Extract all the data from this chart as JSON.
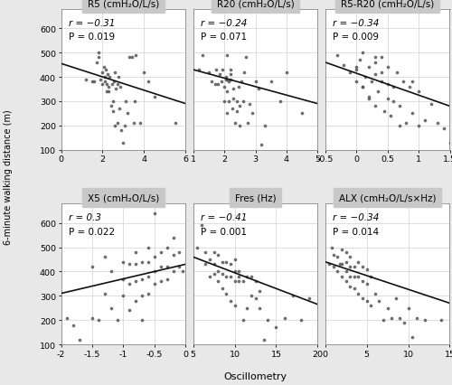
{
  "panels": [
    {
      "title": "R5 (cmH₂O/L/s)",
      "r_str": "r = −0.31",
      "p_str": "P = 0.019",
      "xlim": [
        0,
        6
      ],
      "xticks": [
        0,
        2,
        4,
        6
      ],
      "x": [
        1.2,
        1.5,
        1.6,
        1.7,
        1.8,
        1.8,
        1.9,
        2.0,
        2.0,
        2.05,
        2.1,
        2.1,
        2.15,
        2.2,
        2.2,
        2.25,
        2.3,
        2.3,
        2.35,
        2.4,
        2.45,
        2.5,
        2.5,
        2.55,
        2.6,
        2.6,
        2.65,
        2.7,
        2.7,
        2.75,
        2.8,
        2.85,
        2.9,
        3.0,
        3.05,
        3.1,
        3.2,
        3.3,
        3.4,
        3.5,
        3.55,
        3.6,
        3.8,
        4.0,
        4.2,
        4.5,
        5.5
      ],
      "y": [
        390,
        380,
        380,
        460,
        480,
        500,
        390,
        370,
        420,
        440,
        380,
        400,
        430,
        340,
        370,
        410,
        340,
        360,
        400,
        280,
        370,
        260,
        300,
        380,
        420,
        200,
        350,
        210,
        370,
        400,
        270,
        360,
        180,
        130,
        200,
        300,
        250,
        480,
        480,
        210,
        300,
        490,
        210,
        420,
        380,
        320,
        210
      ],
      "line_x": [
        0,
        6
      ],
      "line_y": [
        455,
        290
      ]
    },
    {
      "title": "R20 (cmH₂O/L/s)",
      "r_str": "r = −0.24",
      "p_str": "P = 0.071",
      "xlim": [
        1,
        5
      ],
      "xticks": [
        1,
        2,
        3,
        4,
        5
      ],
      "x": [
        1.2,
        1.3,
        1.5,
        1.6,
        1.7,
        1.75,
        1.8,
        1.85,
        1.9,
        1.95,
        2.0,
        2.0,
        2.05,
        2.05,
        2.1,
        2.1,
        2.15,
        2.2,
        2.2,
        2.25,
        2.3,
        2.3,
        2.35,
        2.4,
        2.4,
        2.45,
        2.5,
        2.5,
        2.55,
        2.6,
        2.65,
        2.7,
        2.75,
        2.8,
        2.9,
        3.0,
        3.1,
        3.2,
        3.3,
        3.5,
        3.8,
        4.0,
        4.5,
        2.1,
        2.1,
        2.15,
        2.2
      ],
      "y": [
        430,
        490,
        420,
        380,
        370,
        430,
        370,
        410,
        380,
        430,
        300,
        360,
        390,
        400,
        490,
        340,
        380,
        410,
        430,
        270,
        310,
        350,
        210,
        260,
        300,
        360,
        200,
        280,
        380,
        300,
        420,
        480,
        210,
        290,
        250,
        380,
        350,
        120,
        200,
        380,
        300,
        420,
        250,
        390,
        250,
        300,
        390
      ],
      "line_x": [
        1,
        5
      ],
      "line_y": [
        430,
        290
      ]
    },
    {
      "title": "R5-R20 (cmH₂O/L/s)",
      "r_str": "r = −0.34",
      "p_str": "P = 0.009",
      "xlim": [
        -0.5,
        1.5
      ],
      "xticks": [
        -0.5,
        0.0,
        0.5,
        1.0,
        1.5
      ],
      "x": [
        -0.3,
        -0.2,
        -0.1,
        0.0,
        0.0,
        0.05,
        0.1,
        0.1,
        0.15,
        0.2,
        0.2,
        0.25,
        0.3,
        0.3,
        0.3,
        0.35,
        0.4,
        0.4,
        0.4,
        0.45,
        0.5,
        0.5,
        0.5,
        0.55,
        0.6,
        0.6,
        0.65,
        0.7,
        0.7,
        0.75,
        0.8,
        0.85,
        0.9,
        0.9,
        1.0,
        1.0,
        1.1,
        1.2,
        1.3,
        1.4,
        1.5,
        0.3,
        0.0,
        0.1,
        0.2
      ],
      "y": [
        490,
        450,
        420,
        380,
        430,
        470,
        500,
        360,
        400,
        440,
        320,
        380,
        410,
        460,
        280,
        340,
        380,
        420,
        480,
        260,
        310,
        370,
        440,
        240,
        300,
        360,
        420,
        200,
        280,
        380,
        210,
        360,
        250,
        380,
        200,
        340,
        220,
        290,
        210,
        190,
        130,
        480,
        440,
        360,
        310
      ],
      "line_x": [
        -0.5,
        1.5
      ],
      "line_y": [
        460,
        280
      ]
    },
    {
      "title": "X5 (cmH₂O/L/s)",
      "r_str": "r = 0.3",
      "p_str": "P = 0.022",
      "xlim": [
        -2.0,
        0.0
      ],
      "xticks": [
        -2.0,
        -1.5,
        -1.0,
        -0.5,
        0.0
      ],
      "x": [
        -1.9,
        -1.8,
        -1.7,
        -1.5,
        -1.5,
        -1.4,
        -1.3,
        -1.3,
        -1.2,
        -1.2,
        -1.1,
        -1.0,
        -1.0,
        -1.0,
        -0.9,
        -0.9,
        -0.9,
        -0.8,
        -0.8,
        -0.8,
        -0.8,
        -0.7,
        -0.7,
        -0.7,
        -0.7,
        -0.6,
        -0.6,
        -0.6,
        -0.6,
        -0.5,
        -0.5,
        -0.5,
        -0.5,
        -0.4,
        -0.4,
        -0.4,
        -0.3,
        -0.3,
        -0.3,
        -0.2,
        -0.2,
        -0.2,
        -0.1,
        -0.1,
        -0.05
      ],
      "y": [
        210,
        180,
        120,
        210,
        420,
        200,
        310,
        460,
        250,
        400,
        200,
        300,
        370,
        440,
        240,
        350,
        430,
        280,
        360,
        430,
        480,
        200,
        300,
        370,
        440,
        310,
        380,
        440,
        500,
        350,
        400,
        460,
        640,
        360,
        420,
        480,
        370,
        420,
        500,
        400,
        470,
        540,
        420,
        480,
        400
      ],
      "line_x": [
        -2.0,
        0.0
      ],
      "line_y": [
        310,
        430
      ]
    },
    {
      "title": "Fres (Hz)",
      "r_str": "r = −0.41",
      "p_str": "P = 0.001",
      "xlim": [
        5,
        20
      ],
      "xticks": [
        5,
        10,
        15,
        20
      ],
      "x": [
        5.5,
        6.0,
        6.5,
        6.5,
        7.0,
        7.0,
        7.5,
        7.5,
        7.5,
        8.0,
        8.0,
        8.0,
        8.5,
        8.5,
        8.5,
        9.0,
        9.0,
        9.0,
        9.5,
        9.5,
        9.5,
        10.0,
        10.0,
        10.0,
        10.0,
        10.5,
        10.5,
        10.5,
        11.0,
        11.0,
        11.5,
        11.5,
        12.0,
        12.0,
        12.5,
        12.5,
        13.0,
        13.0,
        13.5,
        14.0,
        15.0,
        16.0,
        17.0,
        18.0,
        19.0
      ],
      "y": [
        500,
        590,
        430,
        480,
        380,
        450,
        390,
        430,
        480,
        360,
        400,
        470,
        330,
        390,
        440,
        310,
        380,
        440,
        280,
        380,
        430,
        260,
        360,
        400,
        450,
        360,
        380,
        400,
        200,
        360,
        250,
        380,
        300,
        380,
        290,
        360,
        250,
        320,
        120,
        200,
        170,
        210,
        300,
        200,
        290
      ],
      "line_x": [
        5,
        20
      ],
      "line_y": [
        460,
        265
      ]
    },
    {
      "title": "ALX (cmH₂O/L/s×Hz)",
      "r_str": "r = −0.34",
      "p_str": "P = 0.014",
      "xlim": [
        0,
        15
      ],
      "xticks": [
        0,
        5,
        10,
        15
      ],
      "x": [
        0.5,
        0.8,
        1.0,
        1.0,
        1.5,
        1.5,
        1.8,
        2.0,
        2.0,
        2.0,
        2.5,
        2.5,
        2.5,
        2.5,
        3.0,
        3.0,
        3.0,
        3.0,
        3.5,
        3.5,
        3.5,
        4.0,
        4.0,
        4.0,
        4.5,
        4.5,
        4.5,
        5.0,
        5.0,
        5.0,
        5.5,
        5.5,
        6.0,
        6.5,
        7.0,
        7.5,
        8.0,
        8.5,
        9.0,
        9.5,
        10.0,
        10.5,
        11.0,
        12.0,
        14.0
      ],
      "y": [
        430,
        500,
        420,
        470,
        400,
        460,
        430,
        380,
        430,
        490,
        360,
        400,
        440,
        480,
        340,
        380,
        420,
        460,
        330,
        380,
        420,
        310,
        380,
        440,
        290,
        360,
        420,
        280,
        350,
        410,
        260,
        380,
        310,
        280,
        200,
        250,
        210,
        290,
        210,
        190,
        250,
        130,
        210,
        200,
        200
      ],
      "line_x": [
        0,
        15
      ],
      "line_y": [
        440,
        270
      ]
    }
  ],
  "ylim": [
    100,
    680
  ],
  "yticks": [
    100,
    200,
    300,
    400,
    500,
    600
  ],
  "ylabel": "6-minute walking distance (m)",
  "xlabel": "Oscillometry",
  "fig_bg": "#e8e8e8",
  "plot_bg": "#ffffff",
  "grid_color": "#d0d0d0",
  "dot_color": "#555555",
  "line_color": "#111111",
  "title_bg": "#c8c8c8",
  "annot_fontsize": 7.5,
  "title_fontsize": 7.5,
  "tick_fontsize": 6.8,
  "ylabel_fontsize": 7.0,
  "xlabel_fontsize": 8.0
}
